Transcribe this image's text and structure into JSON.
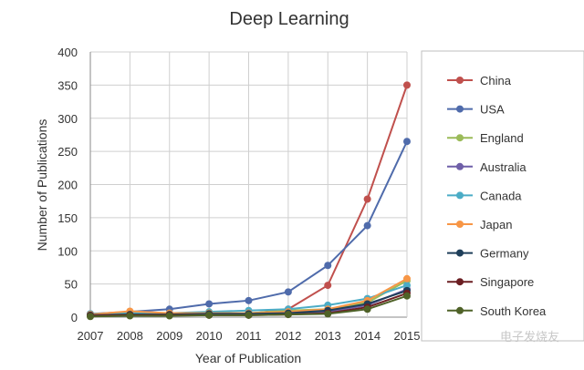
{
  "chart_data": {
    "type": "line",
    "title": "Deep Learning",
    "xlabel": "Year of Publication",
    "ylabel": "Number of Publications",
    "categories": [
      "2007",
      "2008",
      "2009",
      "2010",
      "2011",
      "2012",
      "2013",
      "2014",
      "2015"
    ],
    "ylim": [
      0,
      400
    ],
    "yticks": [
      0,
      50,
      100,
      150,
      200,
      250,
      300,
      350,
      400
    ],
    "grid": true,
    "legend_position": "right",
    "series": [
      {
        "name": "China",
        "color": "#c0504d",
        "values": [
          3,
          8,
          5,
          5,
          5,
          12,
          48,
          178,
          350
        ]
      },
      {
        "name": "USA",
        "color": "#4f6bab",
        "values": [
          5,
          8,
          12,
          20,
          25,
          38,
          78,
          138,
          265
        ]
      },
      {
        "name": "England",
        "color": "#9bbb59",
        "values": [
          4,
          5,
          5,
          6,
          6,
          10,
          12,
          22,
          55
        ]
      },
      {
        "name": "Australia",
        "color": "#6f5fa8",
        "values": [
          2,
          3,
          4,
          4,
          4,
          6,
          8,
          18,
          42
        ]
      },
      {
        "name": "Canada",
        "color": "#4bacc6",
        "values": [
          5,
          7,
          6,
          8,
          10,
          12,
          18,
          28,
          48
        ]
      },
      {
        "name": "Japan",
        "color": "#f79646",
        "values": [
          4,
          9,
          6,
          6,
          6,
          8,
          12,
          25,
          58
        ]
      },
      {
        "name": "Germany",
        "color": "#1f3f5a",
        "values": [
          3,
          4,
          4,
          5,
          5,
          6,
          10,
          20,
          40
        ]
      },
      {
        "name": "Singapore",
        "color": "#6b1e22",
        "values": [
          2,
          3,
          3,
          3,
          3,
          4,
          6,
          15,
          36
        ]
      },
      {
        "name": "South Korea",
        "color": "#4f6228",
        "values": [
          1,
          2,
          2,
          3,
          3,
          4,
          5,
          12,
          32
        ]
      }
    ],
    "watermark": "电子发烧友"
  }
}
